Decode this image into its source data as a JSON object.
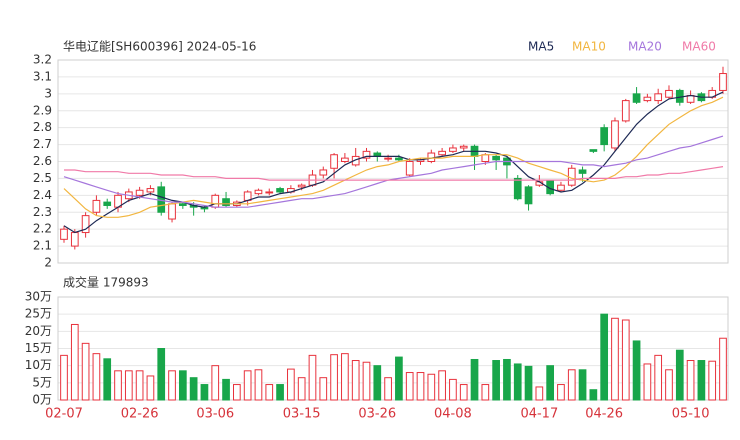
{
  "chart_data": [
    {
      "type": "candlestick",
      "title": "华电辽能[SH600396] 2024-05-16",
      "categories": [
        "02-07",
        null,
        null,
        null,
        null,
        null,
        null,
        "02-26",
        null,
        null,
        null,
        null,
        null,
        null,
        "03-06",
        null,
        null,
        null,
        null,
        null,
        null,
        null,
        "03-15",
        null,
        null,
        null,
        null,
        null,
        null,
        "03-26",
        null,
        null,
        null,
        null,
        null,
        null,
        "04-08",
        null,
        null,
        null,
        null,
        null,
        null,
        null,
        "04-17",
        null,
        null,
        null,
        null,
        null,
        "04-26",
        null,
        null,
        null,
        null,
        null,
        null,
        null,
        "05-10",
        null,
        null,
        null
      ],
      "open": [
        2.14,
        2.1,
        2.18,
        2.3,
        2.36,
        2.33,
        2.38,
        2.4,
        2.42,
        2.45,
        2.26,
        2.35,
        2.34,
        2.33,
        2.33,
        2.38,
        2.34,
        2.37,
        2.41,
        2.42,
        2.44,
        2.42,
        2.45,
        2.46,
        2.52,
        2.56,
        2.6,
        2.58,
        2.62,
        2.65,
        2.62,
        2.62,
        2.52,
        2.6,
        2.6,
        2.64,
        2.66,
        2.68,
        2.69,
        2.6,
        2.63,
        2.62,
        2.5,
        2.45,
        2.46,
        2.49,
        2.43,
        2.46,
        2.55,
        2.67,
        2.8,
        2.68,
        2.84,
        3.0,
        2.96,
        2.96,
        2.98,
        3.02,
        2.95,
        3.0,
        2.98,
        3.02
      ],
      "high": [
        2.22,
        2.2,
        2.3,
        2.4,
        2.38,
        2.42,
        2.44,
        2.45,
        2.46,
        2.48,
        2.36,
        2.36,
        2.36,
        2.34,
        2.41,
        2.42,
        2.37,
        2.43,
        2.44,
        2.44,
        2.45,
        2.46,
        2.47,
        2.55,
        2.57,
        2.65,
        2.65,
        2.68,
        2.68,
        2.66,
        2.64,
        2.64,
        2.62,
        2.62,
        2.67,
        2.68,
        2.7,
        2.7,
        2.7,
        2.65,
        2.64,
        2.63,
        2.52,
        2.46,
        2.52,
        2.49,
        2.48,
        2.58,
        2.57,
        2.67,
        2.82,
        2.86,
        2.97,
        3.04,
        3.0,
        3.03,
        3.05,
        3.03,
        3.02,
        3.01,
        3.04,
        3.16
      ],
      "low": [
        2.12,
        2.08,
        2.15,
        2.28,
        2.32,
        2.3,
        2.36,
        2.38,
        2.4,
        2.28,
        2.24,
        2.32,
        2.28,
        2.3,
        2.32,
        2.33,
        2.33,
        2.34,
        2.4,
        2.4,
        2.41,
        2.41,
        2.43,
        2.45,
        2.5,
        2.5,
        2.59,
        2.57,
        2.6,
        2.6,
        2.6,
        2.6,
        2.51,
        2.58,
        2.59,
        2.63,
        2.65,
        2.66,
        2.55,
        2.58,
        2.55,
        2.5,
        2.37,
        2.31,
        2.45,
        2.4,
        2.42,
        2.45,
        2.48,
        2.65,
        2.66,
        2.66,
        2.83,
        2.94,
        2.95,
        2.94,
        2.97,
        2.93,
        2.94,
        2.95,
        2.97,
        3.0
      ],
      "close": [
        2.2,
        2.18,
        2.28,
        2.37,
        2.34,
        2.4,
        2.42,
        2.43,
        2.44,
        2.3,
        2.35,
        2.34,
        2.33,
        2.32,
        2.4,
        2.34,
        2.36,
        2.42,
        2.43,
        2.42,
        2.42,
        2.44,
        2.46,
        2.52,
        2.55,
        2.64,
        2.62,
        2.63,
        2.66,
        2.63,
        2.62,
        2.61,
        2.6,
        2.61,
        2.65,
        2.66,
        2.68,
        2.69,
        2.63,
        2.64,
        2.61,
        2.58,
        2.38,
        2.35,
        2.48,
        2.41,
        2.46,
        2.56,
        2.53,
        2.66,
        2.7,
        2.84,
        2.96,
        2.95,
        2.98,
        3.0,
        3.02,
        2.95,
        2.99,
        2.96,
        3.02,
        3.12
      ],
      "up_color": "#e8323c",
      "down_color": "#18a64a",
      "series": [
        {
          "name": "MA5",
          "color": "#1e2a55",
          "values": [
            2.22,
            2.18,
            2.2,
            2.25,
            2.29,
            2.33,
            2.37,
            2.39,
            2.41,
            2.39,
            2.37,
            2.36,
            2.34,
            2.33,
            2.35,
            2.35,
            2.35,
            2.37,
            2.39,
            2.39,
            2.41,
            2.42,
            2.44,
            2.46,
            2.48,
            2.53,
            2.58,
            2.61,
            2.63,
            2.63,
            2.63,
            2.63,
            2.61,
            2.61,
            2.62,
            2.63,
            2.64,
            2.66,
            2.66,
            2.66,
            2.65,
            2.63,
            2.57,
            2.51,
            2.48,
            2.44,
            2.42,
            2.43,
            2.47,
            2.52,
            2.58,
            2.66,
            2.74,
            2.82,
            2.88,
            2.93,
            2.97,
            2.98,
            2.99,
            2.98,
            2.98,
            3.01
          ]
        },
        {
          "name": "MA10",
          "color": "#f2b640",
          "values": [
            2.44,
            2.38,
            2.32,
            2.28,
            2.27,
            2.27,
            2.28,
            2.3,
            2.33,
            2.34,
            2.35,
            2.36,
            2.37,
            2.36,
            2.35,
            2.35,
            2.35,
            2.35,
            2.36,
            2.37,
            2.38,
            2.39,
            2.4,
            2.41,
            2.43,
            2.46,
            2.49,
            2.52,
            2.55,
            2.57,
            2.58,
            2.6,
            2.61,
            2.62,
            2.62,
            2.62,
            2.63,
            2.63,
            2.63,
            2.64,
            2.64,
            2.64,
            2.62,
            2.59,
            2.57,
            2.55,
            2.53,
            2.5,
            2.49,
            2.48,
            2.49,
            2.52,
            2.57,
            2.63,
            2.7,
            2.76,
            2.82,
            2.86,
            2.9,
            2.93,
            2.95,
            2.98
          ]
        },
        {
          "name": "MA20",
          "color": "#a576dc",
          "values": [
            2.51,
            2.49,
            2.47,
            2.45,
            2.43,
            2.41,
            2.4,
            2.39,
            2.38,
            2.37,
            2.36,
            2.36,
            2.35,
            2.34,
            2.33,
            2.33,
            2.33,
            2.33,
            2.34,
            2.35,
            2.36,
            2.37,
            2.38,
            2.38,
            2.39,
            2.4,
            2.41,
            2.43,
            2.45,
            2.47,
            2.49,
            2.5,
            2.51,
            2.52,
            2.53,
            2.55,
            2.56,
            2.57,
            2.58,
            2.59,
            2.6,
            2.6,
            2.6,
            2.6,
            2.6,
            2.6,
            2.6,
            2.59,
            2.58,
            2.58,
            2.57,
            2.58,
            2.59,
            2.61,
            2.62,
            2.64,
            2.66,
            2.68,
            2.69,
            2.71,
            2.73,
            2.75
          ]
        },
        {
          "name": "MA60",
          "color": "#f07aa8",
          "values": [
            2.55,
            2.55,
            2.54,
            2.54,
            2.54,
            2.54,
            2.53,
            2.53,
            2.53,
            2.52,
            2.52,
            2.52,
            2.51,
            2.51,
            2.51,
            2.5,
            2.5,
            2.5,
            2.5,
            2.49,
            2.49,
            2.49,
            2.49,
            2.49,
            2.49,
            2.49,
            2.49,
            2.49,
            2.49,
            2.49,
            2.49,
            2.49,
            2.49,
            2.49,
            2.49,
            2.49,
            2.49,
            2.49,
            2.49,
            2.49,
            2.49,
            2.49,
            2.49,
            2.49,
            2.49,
            2.49,
            2.49,
            2.49,
            2.5,
            2.5,
            2.5,
            2.5,
            2.51,
            2.51,
            2.52,
            2.52,
            2.53,
            2.53,
            2.54,
            2.55,
            2.56,
            2.57
          ]
        }
      ],
      "ylim": [
        2,
        3.2
      ],
      "yticks": [
        2,
        2.1,
        2.2,
        2.3,
        2.4,
        2.5,
        2.6,
        2.7,
        2.8,
        2.9,
        3,
        3.1,
        3.2
      ],
      "grid": true
    },
    {
      "type": "volume",
      "title": "成交量 179893",
      "values": [
        130000,
        220000,
        165000,
        135000,
        120000,
        85000,
        85000,
        85000,
        70000,
        150000,
        85000,
        85000,
        65000,
        45000,
        100000,
        60000,
        45000,
        85000,
        88000,
        45000,
        45000,
        90000,
        65000,
        130000,
        65000,
        132000,
        135000,
        115000,
        110000,
        100000,
        65000,
        125000,
        80000,
        80000,
        75000,
        85000,
        60000,
        45000,
        118000,
        45000,
        115000,
        118000,
        105000,
        98000,
        38000,
        100000,
        45000,
        88000,
        88000,
        30000,
        250000,
        238000,
        233000,
        172000,
        105000,
        130000,
        88000,
        145000,
        115000,
        115000,
        113000,
        179893
      ],
      "ylim": [
        0,
        300000
      ],
      "yticks": [
        {
          "value": 0,
          "label": "0万"
        },
        {
          "value": 50000,
          "label": "5万"
        },
        {
          "value": 100000,
          "label": "10万"
        },
        {
          "value": 150000,
          "label": "15万"
        },
        {
          "value": 200000,
          "label": "20万"
        },
        {
          "value": 250000,
          "label": "25万"
        },
        {
          "value": 300000,
          "label": "30万"
        }
      ],
      "grid": true
    }
  ]
}
